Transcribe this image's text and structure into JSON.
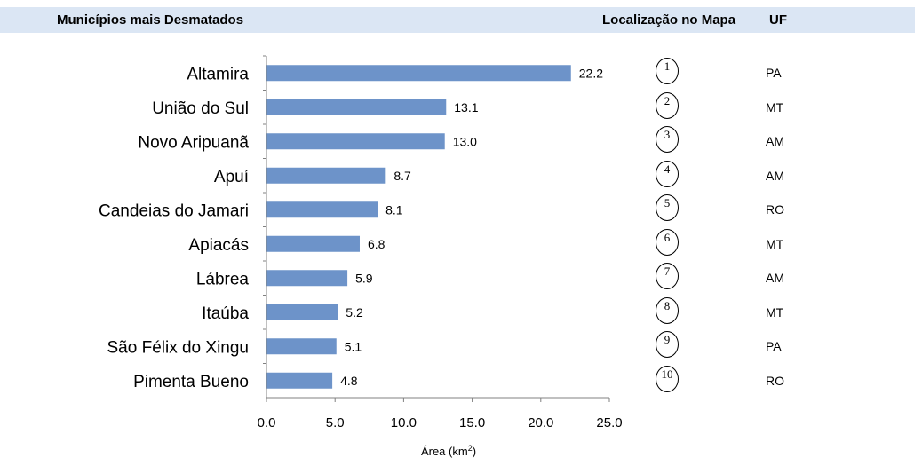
{
  "header": {
    "left_title": "Municípios mais Desmatados",
    "map_title": "Localização no Mapa",
    "uf_title": "UF"
  },
  "colors": {
    "bar": "#6d93c9",
    "header_bg": "#dbe6f4"
  },
  "chart_data": {
    "type": "bar",
    "orientation": "horizontal",
    "categories": [
      "Altamira",
      "União do Sul",
      "Novo Aripuanã",
      "Apuí",
      "Candeias do Jamari",
      "Apiacás",
      "Lábrea",
      "Itaúba",
      "São Félix do Xingu",
      "Pimenta Bueno"
    ],
    "values": [
      22.2,
      13.1,
      13.0,
      8.7,
      8.1,
      6.8,
      5.9,
      5.2,
      5.1,
      4.8
    ],
    "value_labels": [
      "22.2",
      "13.1",
      "13.0",
      "8.7",
      "8.1",
      "6.8",
      "5.9",
      "5.2",
      "5.1",
      "4.8"
    ],
    "xlabel_main": "Área (km",
    "xlabel_sup": "2",
    "xlabel_end": ")",
    "xlim": [
      0,
      25
    ],
    "xticks": [
      "0.0",
      "5.0",
      "10.0",
      "15.0",
      "20.0",
      "25.0"
    ],
    "grid": false,
    "legend": "none"
  },
  "table": {
    "rows": [
      {
        "rank": "1",
        "uf": "PA"
      },
      {
        "rank": "2",
        "uf": "MT"
      },
      {
        "rank": "3",
        "uf": "AM"
      },
      {
        "rank": "4",
        "uf": "AM"
      },
      {
        "rank": "5",
        "uf": "RO"
      },
      {
        "rank": "6",
        "uf": "MT"
      },
      {
        "rank": "7",
        "uf": "AM"
      },
      {
        "rank": "8",
        "uf": "MT"
      },
      {
        "rank": "9",
        "uf": "PA"
      },
      {
        "rank": "10",
        "uf": "RO"
      }
    ]
  }
}
